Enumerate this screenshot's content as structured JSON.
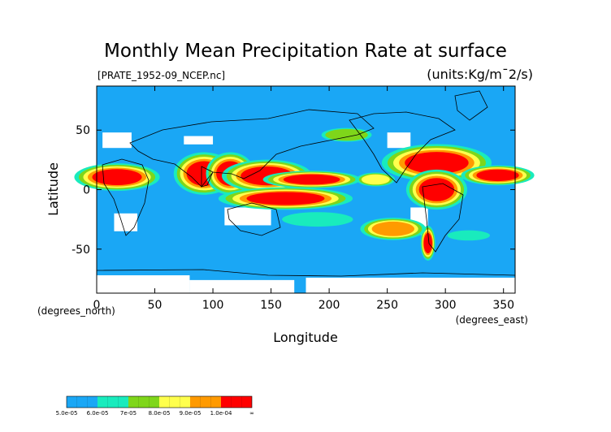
{
  "chart_data": {
    "type": "heatmap",
    "title": "Monthly Mean Precipitation Rate at surface",
    "subtitle": "[PRATE_1952-09_NCEP.nc]",
    "units": "(units:Kg/m¯2/s)",
    "xlabel": "Longitude",
    "ylabel": "Latitude",
    "x_unit_label": "(degrees_east)",
    "y_unit_label": "(degrees_north)",
    "xlim": [
      0,
      360
    ],
    "ylim": [
      -87,
      87
    ],
    "x_ticks": [
      0,
      50,
      100,
      150,
      200,
      250,
      300,
      350
    ],
    "y_ticks": [
      50,
      0,
      -50
    ],
    "colorbar": {
      "colors": [
        "#1aa7f5",
        "#19ebbd",
        "#7fd61a",
        "#ffff4d",
        "#ff9a00",
        "#ff0000"
      ],
      "labels": [
        "5.0e-05",
        "6.0e-05",
        "7e-05",
        "8.0e-05",
        "9.0e-05",
        "1.0e-04",
        "∞"
      ]
    },
    "background_color": "#1aa7f5",
    "missing_color": "#ffffff",
    "regions": [
      {
        "level": 6,
        "lon": [
          80,
          105
        ],
        "lat": [
          5,
          22
        ]
      },
      {
        "level": 6,
        "lon": [
          105,
          125
        ],
        "lat": [
          5,
          22
        ]
      },
      {
        "level": 6,
        "lon": [
          128,
          165
        ],
        "lat": [
          5,
          18
        ]
      },
      {
        "level": 6,
        "lon": [
          165,
          205
        ],
        "lat": [
          5,
          12
        ]
      },
      {
        "level": 6,
        "lon": [
          135,
          190
        ],
        "lat": [
          -12,
          -3
        ]
      },
      {
        "level": 6,
        "lon": [
          0,
          35
        ],
        "lat": [
          5,
          16
        ]
      },
      {
        "level": 6,
        "lon": [
          270,
          315
        ],
        "lat": [
          15,
          30
        ]
      },
      {
        "level": 6,
        "lon": [
          280,
          305
        ],
        "lat": [
          -8,
          8
        ]
      },
      {
        "level": 6,
        "lon": [
          330,
          360
        ],
        "lat": [
          8,
          16
        ]
      },
      {
        "level": 6,
        "lon": [
          282,
          288
        ],
        "lat": [
          -52,
          -38
        ]
      },
      {
        "level": 5,
        "lon": [
          240,
          270
        ],
        "lat": [
          -38,
          -28
        ]
      },
      {
        "level": 4,
        "lon": [
          230,
          250
        ],
        "lat": [
          5,
          12
        ]
      },
      {
        "level": 3,
        "lon": [
          200,
          230
        ],
        "lat": [
          42,
          50
        ]
      },
      {
        "level": 2,
        "lon": [
          305,
          335
        ],
        "lat": [
          -42,
          -35
        ]
      },
      {
        "level": 2,
        "lon": [
          165,
          215
        ],
        "lat": [
          -30,
          -20
        ]
      }
    ],
    "missing_regions": [
      {
        "lon": [
          0,
          80
        ],
        "lat": [
          -87,
          -72
        ]
      },
      {
        "lon": [
          80,
          170
        ],
        "lat": [
          -87,
          -76
        ]
      },
      {
        "lon": [
          180,
          360
        ],
        "lat": [
          -87,
          -74
        ]
      },
      {
        "lon": [
          15,
          35
        ],
        "lat": [
          -35,
          -20
        ]
      },
      {
        "lon": [
          110,
          150
        ],
        "lat": [
          -30,
          -15
        ]
      },
      {
        "lon": [
          270,
          285
        ],
        "lat": [
          -38,
          -15
        ]
      },
      {
        "lon": [
          5,
          30
        ],
        "lat": [
          35,
          48
        ]
      },
      {
        "lon": [
          250,
          270
        ],
        "lat": [
          35,
          48
        ]
      },
      {
        "lon": [
          75,
          100
        ],
        "lat": [
          38,
          45
        ]
      }
    ]
  }
}
